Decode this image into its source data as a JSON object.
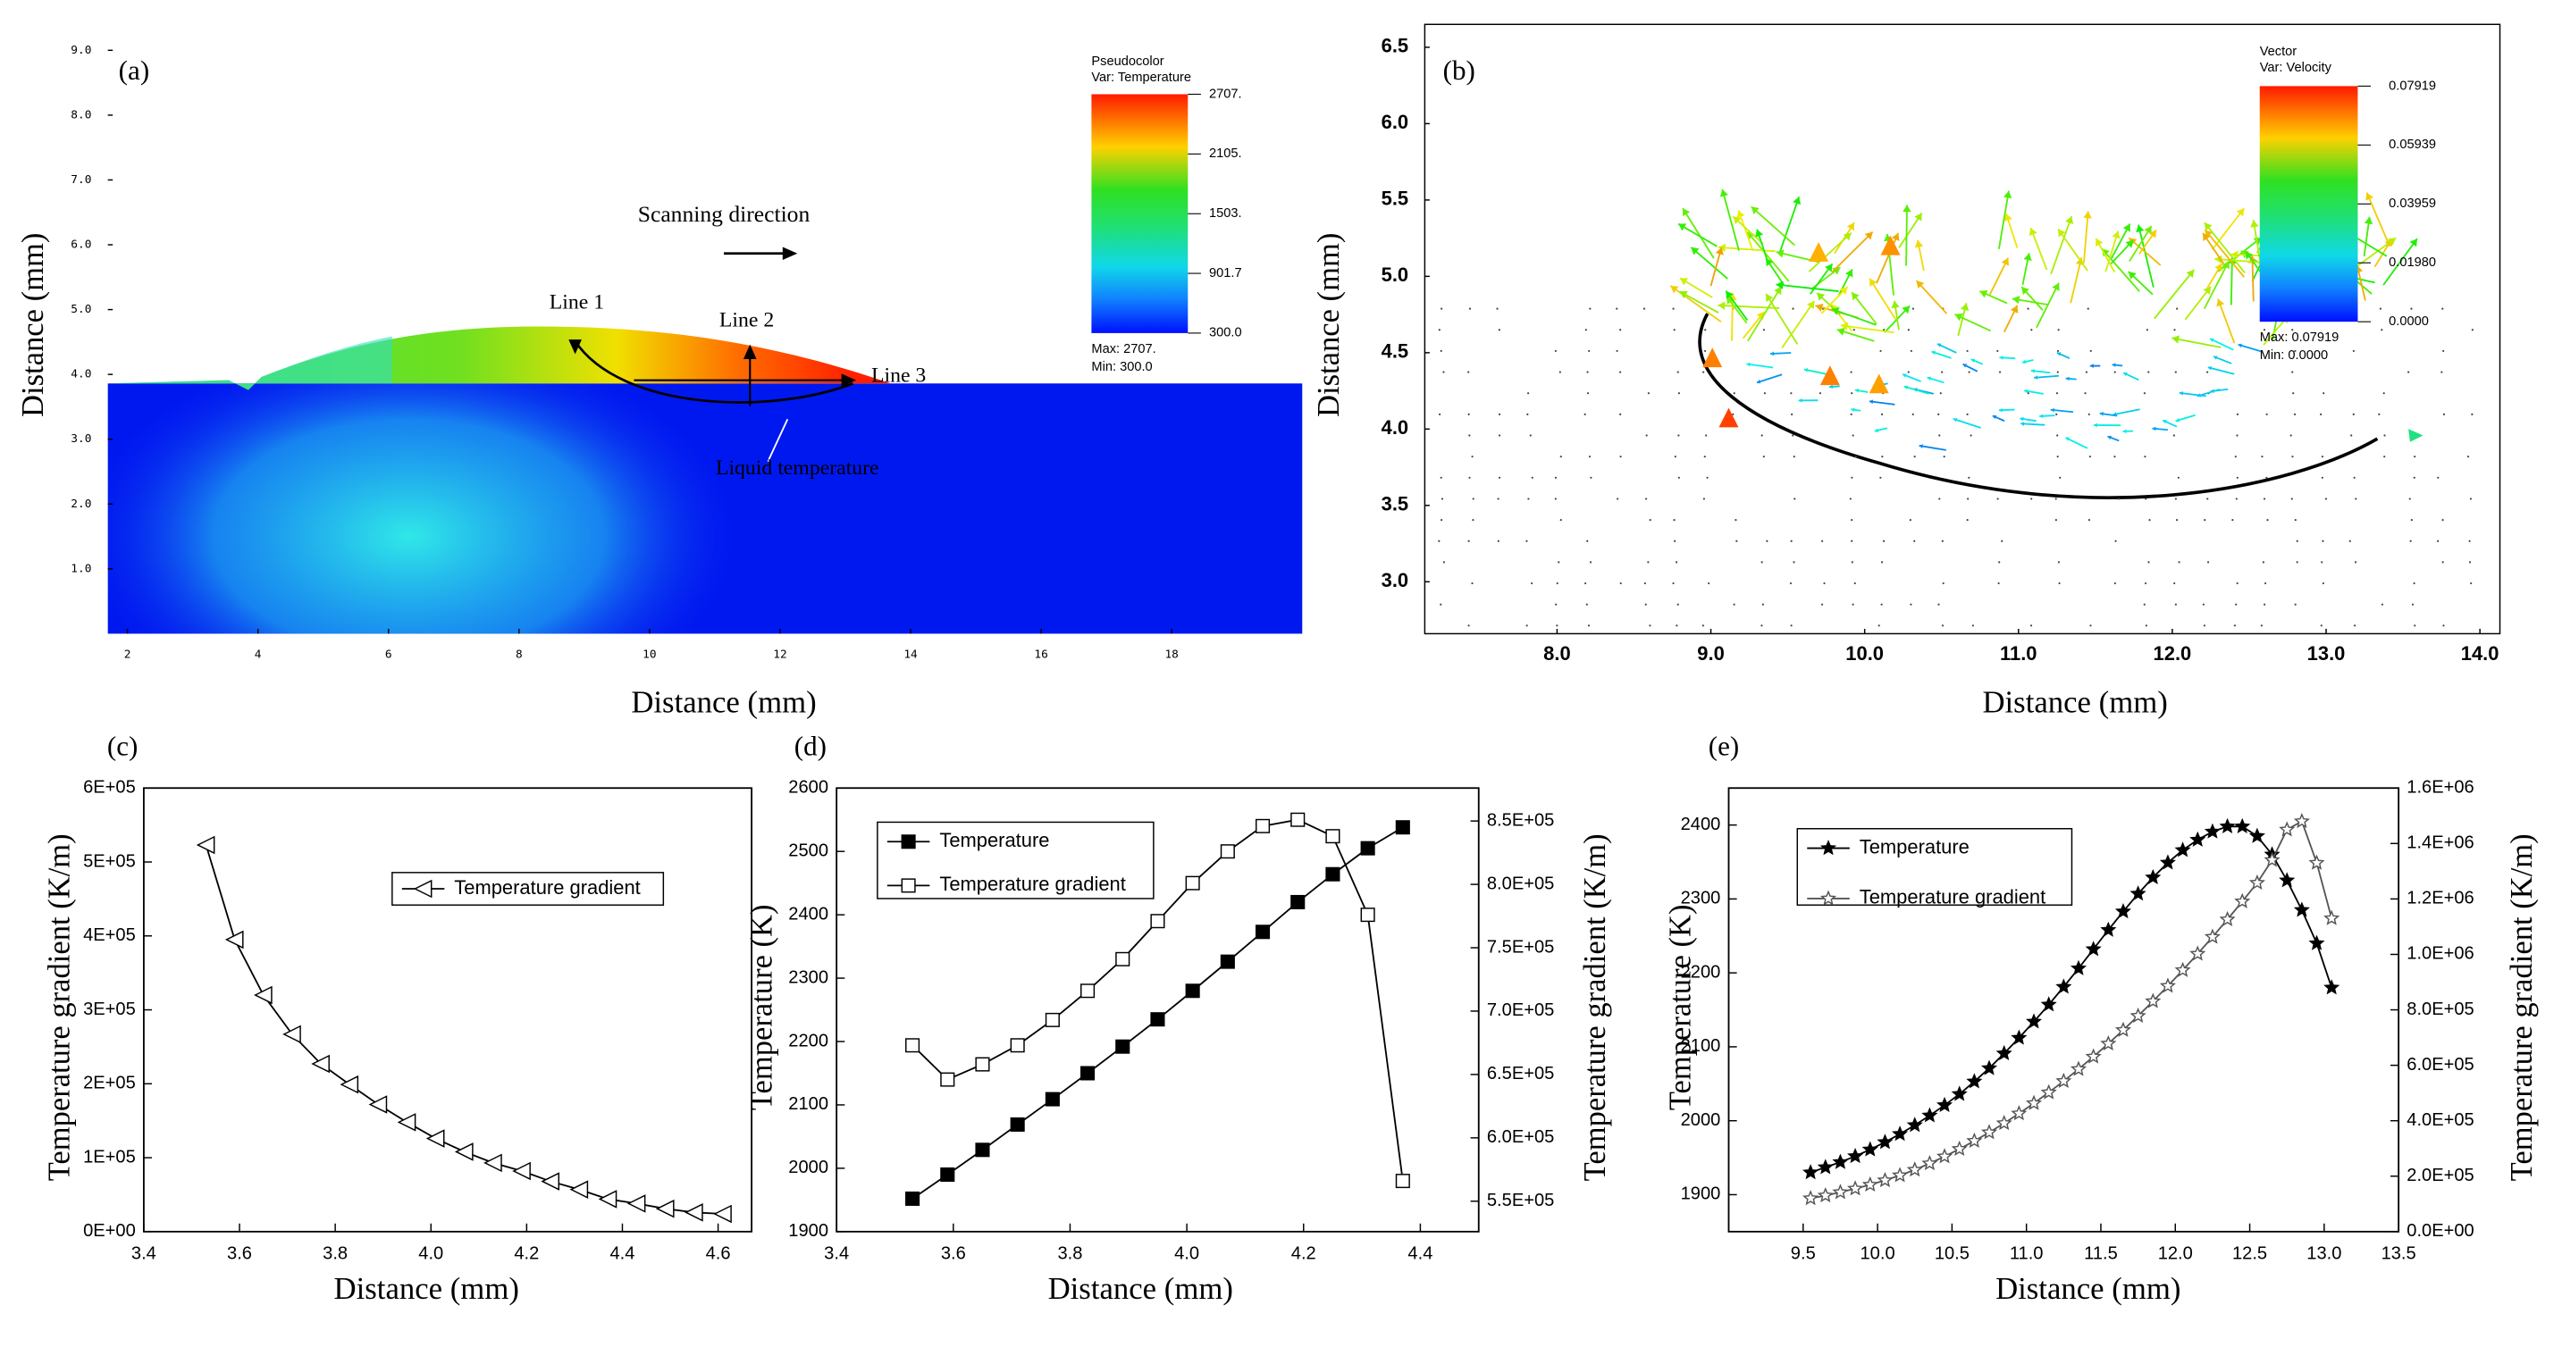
{
  "chart_data": [
    {
      "type": "heatmap",
      "panel": "(a)",
      "xlabel": "Distance (mm)",
      "ylabel": "Distance (mm)",
      "xlim": [
        1.7,
        20
      ],
      "xticks": [
        2,
        4,
        6,
        8,
        10,
        12,
        14,
        16,
        18
      ],
      "ylim": [
        0,
        9.4
      ],
      "yticks": [
        {
          "value": 1,
          "label": "1.0"
        },
        {
          "value": 2,
          "label": "2.0"
        },
        {
          "value": 3,
          "label": "3.0"
        },
        {
          "value": 4,
          "label": "4.0"
        },
        {
          "value": 5,
          "label": "5.0"
        },
        {
          "value": 6,
          "label": "6.0"
        },
        {
          "value": 7,
          "label": "7.0"
        },
        {
          "value": 8,
          "label": "8.0"
        },
        {
          "value": 9,
          "label": "9.0"
        }
      ],
      "colorbar": {
        "title": "Pseudocolor",
        "variable": "Var: Temperature",
        "lim": [
          300,
          2707
        ],
        "ticks": [
          {
            "value": 2707,
            "label": "2707."
          },
          {
            "value": 2105,
            "label": "2105."
          },
          {
            "value": 1503,
            "label": "1503."
          },
          901.7,
          {
            "value": 300,
            "label": "300.0"
          }
        ],
        "max_label": "Max: 2707.",
        "min_label": "Min: 300.0"
      },
      "annotations": [
        "Scanning direction",
        "Line 1",
        "Line 2",
        "Line 3",
        "Liquid temperature"
      ]
    },
    {
      "type": "vector",
      "panel": "(b)",
      "xlabel": "Distance (mm)",
      "ylabel": "Distance (mm)",
      "xlim": [
        7.14,
        14.13
      ],
      "xticks": [
        {
          "value": 8,
          "label": "8.0"
        },
        {
          "value": 9,
          "label": "9.0"
        },
        {
          "value": 10,
          "label": "10.0"
        },
        {
          "value": 11,
          "label": "11.0"
        },
        {
          "value": 12,
          "label": "12.0"
        },
        {
          "value": 13,
          "label": "13.0"
        },
        {
          "value": 14,
          "label": "14.0"
        }
      ],
      "ylim": [
        2.66,
        6.65
      ],
      "yticks": [
        {
          "value": 3,
          "label": "3.0"
        },
        3.5,
        {
          "value": 4,
          "label": "4.0"
        },
        4.5,
        {
          "value": 5,
          "label": "5.0"
        },
        5.5,
        {
          "value": 6,
          "label": "6.0"
        },
        6.5
      ],
      "colorbar": {
        "title": "Vector",
        "variable": "Var: Velocity",
        "lim": [
          0,
          0.07919
        ],
        "ticks": [
          0.07919,
          0.05939,
          0.03959,
          {
            "value": 0.0198,
            "label": "0.01980"
          },
          {
            "value": 0,
            "label": "0.0000"
          }
        ],
        "max_label": "Max: 0.07919",
        "min_label": "Min: 0.0000"
      }
    },
    {
      "type": "line",
      "panel": "(c)",
      "xlabel": "Distance (mm)",
      "ylabel": "Temperature gradient  (K/m)",
      "xlim": [
        3.4,
        4.67
      ],
      "xticks": [
        3.4,
        3.6,
        3.8,
        {
          "value": 4,
          "label": "4.0"
        },
        4.2,
        4.4,
        4.6
      ],
      "ylim": [
        0,
        600000
      ],
      "yticks": [
        {
          "value": 0,
          "label": "0E+00"
        },
        {
          "value": 100000,
          "label": "1E+05"
        },
        {
          "value": 200000,
          "label": "2E+05"
        },
        {
          "value": 300000,
          "label": "3E+05"
        },
        {
          "value": 400000,
          "label": "4E+05"
        },
        {
          "value": 500000,
          "label": "5E+05"
        },
        {
          "value": 600000,
          "label": "6E+05"
        }
      ],
      "x": [
        3.53,
        3.59,
        3.65,
        3.71,
        3.77,
        3.83,
        3.89,
        3.95,
        4.01,
        4.07,
        4.13,
        4.19,
        4.25,
        4.31,
        4.37,
        4.43,
        4.49,
        4.55,
        4.61
      ],
      "series": [
        {
          "name": "Temperature gradient",
          "color": "#000000",
          "marker": "triangle-left-open",
          "values": [
            523000,
            395000,
            320000,
            267000,
            227000,
            199000,
            172000,
            148000,
            126000,
            108000,
            93000,
            82000,
            68000,
            57000,
            44000,
            38000,
            31000,
            26000,
            24000
          ]
        }
      ],
      "legend": "upper right"
    },
    {
      "type": "line",
      "panel": "(d)",
      "xlabel": "Distance (mm)",
      "ylabel": "Temperature  (K)",
      "y2label": "Temperature gradient  (K/m)",
      "xlim": [
        3.4,
        4.5
      ],
      "xticks": [
        3.4,
        3.6,
        3.8,
        {
          "value": 4,
          "label": "4.0"
        },
        4.2,
        4.4
      ],
      "ylim": [
        1900,
        2600
      ],
      "yticks": [
        1900,
        2000,
        2100,
        2200,
        2300,
        2400,
        2500,
        2600
      ],
      "y2lim": [
        526000,
        876000
      ],
      "y2ticks": [
        {
          "value": 550000,
          "label": "5.5E+05"
        },
        {
          "value": 600000,
          "label": "6.0E+05"
        },
        {
          "value": 650000,
          "label": "6.5E+05"
        },
        {
          "value": 700000,
          "label": "7.0E+05"
        },
        {
          "value": 750000,
          "label": "7.5E+05"
        },
        {
          "value": 800000,
          "label": "8.0E+05"
        },
        {
          "value": 850000,
          "label": "8.5E+05"
        }
      ],
      "x": [
        3.53,
        3.59,
        3.65,
        3.71,
        3.77,
        3.83,
        3.89,
        3.95,
        4.01,
        4.07,
        4.13,
        4.19,
        4.25,
        4.31,
        4.37
      ],
      "series": [
        {
          "name": "Temperature",
          "color": "#000000",
          "marker": "square",
          "values": [
            1952,
            1990,
            2029,
            2069,
            2109,
            2150,
            2192,
            2235,
            2280,
            2326,
            2373,
            2420,
            2464,
            2505,
            2538
          ]
        },
        {
          "name": "Temperature gradient",
          "color": "#000000",
          "marker": "square-open",
          "axis": "y2",
          "values": [
            673000,
            646000,
            658000,
            673000,
            693000,
            716000,
            741000,
            771000,
            801000,
            826000,
            846000,
            851000,
            838000,
            776000,
            566000
          ]
        }
      ],
      "legend": "upper left"
    },
    {
      "type": "line",
      "panel": "(e)",
      "xlabel": "Distance (mm)",
      "ylabel": "Temperature  (K)",
      "y2label": "Temperature gradient  (K/m)",
      "xlim": [
        9.0,
        13.5
      ],
      "xticks": [
        9.5,
        {
          "value": 10,
          "label": "10.0"
        },
        10.5,
        {
          "value": 11,
          "label": "11.0"
        },
        11.5,
        {
          "value": 12,
          "label": "12.0"
        },
        12.5,
        {
          "value": 13,
          "label": "13.0"
        },
        13.5
      ],
      "ylim": [
        1850,
        2450
      ],
      "yticks": [
        1900,
        2000,
        2100,
        2200,
        2300,
        2400
      ],
      "y2lim": [
        0,
        1600000
      ],
      "y2ticks": [
        {
          "value": 0,
          "label": "0.0E+00"
        },
        {
          "value": 200000,
          "label": "2.0E+05"
        },
        {
          "value": 400000,
          "label": "4.0E+05"
        },
        {
          "value": 600000,
          "label": "6.0E+05"
        },
        {
          "value": 800000,
          "label": "8.0E+05"
        },
        {
          "value": 1000000,
          "label": "1.0E+06"
        },
        {
          "value": 1200000,
          "label": "1.2E+06"
        },
        {
          "value": 1400000,
          "label": "1.4E+06"
        },
        {
          "value": 1600000,
          "label": "1.6E+06"
        }
      ],
      "x": [
        9.55,
        9.65,
        9.75,
        9.85,
        9.95,
        10.05,
        10.15,
        10.25,
        10.35,
        10.45,
        10.55,
        10.65,
        10.75,
        10.85,
        10.95,
        11.05,
        11.15,
        11.25,
        11.35,
        11.45,
        11.55,
        11.65,
        11.75,
        11.85,
        11.95,
        12.05,
        12.15,
        12.25,
        12.35,
        12.45,
        12.55,
        12.65,
        12.75,
        12.85,
        12.95,
        13.05
      ],
      "series": [
        {
          "name": "Temperature",
          "color": "#000000",
          "marker": "star",
          "values": [
            1930,
            1937,
            1944,
            1952,
            1961,
            1971,
            1982,
            1994,
            2007,
            2021,
            2036,
            2053,
            2071,
            2091,
            2112,
            2134,
            2157,
            2181,
            2206,
            2232,
            2258,
            2283,
            2307,
            2329,
            2349,
            2366,
            2380,
            2391,
            2398,
            2398,
            2385,
            2360,
            2325,
            2285,
            2240,
            2180
          ]
        },
        {
          "name": "Temperature gradient",
          "color": "#555555",
          "marker": "star-open",
          "axis": "y2",
          "values": [
            120000,
            130000,
            142000,
            155000,
            169000,
            185000,
            203000,
            223000,
            246000,
            271000,
            298000,
            327000,
            358000,
            391000,
            426000,
            463000,
            502000,
            543000,
            586000,
            631000,
            678000,
            727000,
            778000,
            831000,
            886000,
            943000,
            1002000,
            1063000,
            1126000,
            1191000,
            1258000,
            1340000,
            1450000,
            1480000,
            1330000,
            1130000
          ]
        }
      ],
      "legend": "upper left"
    }
  ]
}
